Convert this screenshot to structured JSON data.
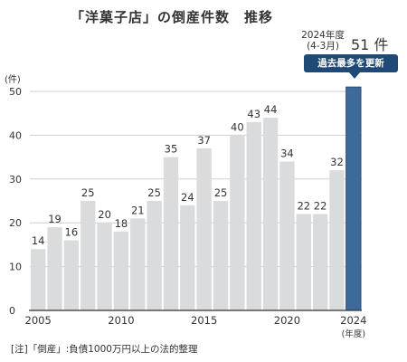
{
  "title": "「洋菓子店」の倒産件数　推移",
  "highlight": {
    "year_line1": "2024年度",
    "year_line2": "(4-3月)",
    "value_text": "51 件",
    "badge": "過去最多を更新"
  },
  "note": "[注]「倒産」:負債1000万円以上の法的整理",
  "chart_data": {
    "type": "bar",
    "title": "「洋菓子店」の倒産件数　推移",
    "xlabel": "(年度)",
    "ylabel": "(件)",
    "ylim": [
      0,
      50
    ],
    "yticks": [
      0,
      10,
      20,
      30,
      40,
      50
    ],
    "xtick_labels": [
      "2005",
      "2010",
      "2015",
      "2020",
      "2024"
    ],
    "categories": [
      "2005",
      "2006",
      "2007",
      "2008",
      "2009",
      "2010",
      "2011",
      "2012",
      "2013",
      "2014",
      "2015",
      "2016",
      "2017",
      "2018",
      "2019",
      "2020",
      "2021",
      "2022",
      "2023",
      "2024"
    ],
    "values": [
      14,
      19,
      16,
      25,
      20,
      18,
      21,
      25,
      35,
      24,
      37,
      25,
      40,
      43,
      44,
      34,
      22,
      22,
      32,
      51
    ],
    "data_labels": [
      "14",
      "19",
      "16",
      "25",
      "20",
      "18",
      "21",
      "25",
      "35",
      "24",
      "37",
      "25",
      "40",
      "43",
      "44",
      "34",
      "22",
      "22",
      "32",
      ""
    ],
    "highlight_index": 19,
    "colors": {
      "bar": "#d9dbdd",
      "highlight": "#3d6a99",
      "highlight_border": "#2a4d75",
      "grid": "#cfcfcf",
      "axis": "#333333"
    },
    "grid": true
  }
}
